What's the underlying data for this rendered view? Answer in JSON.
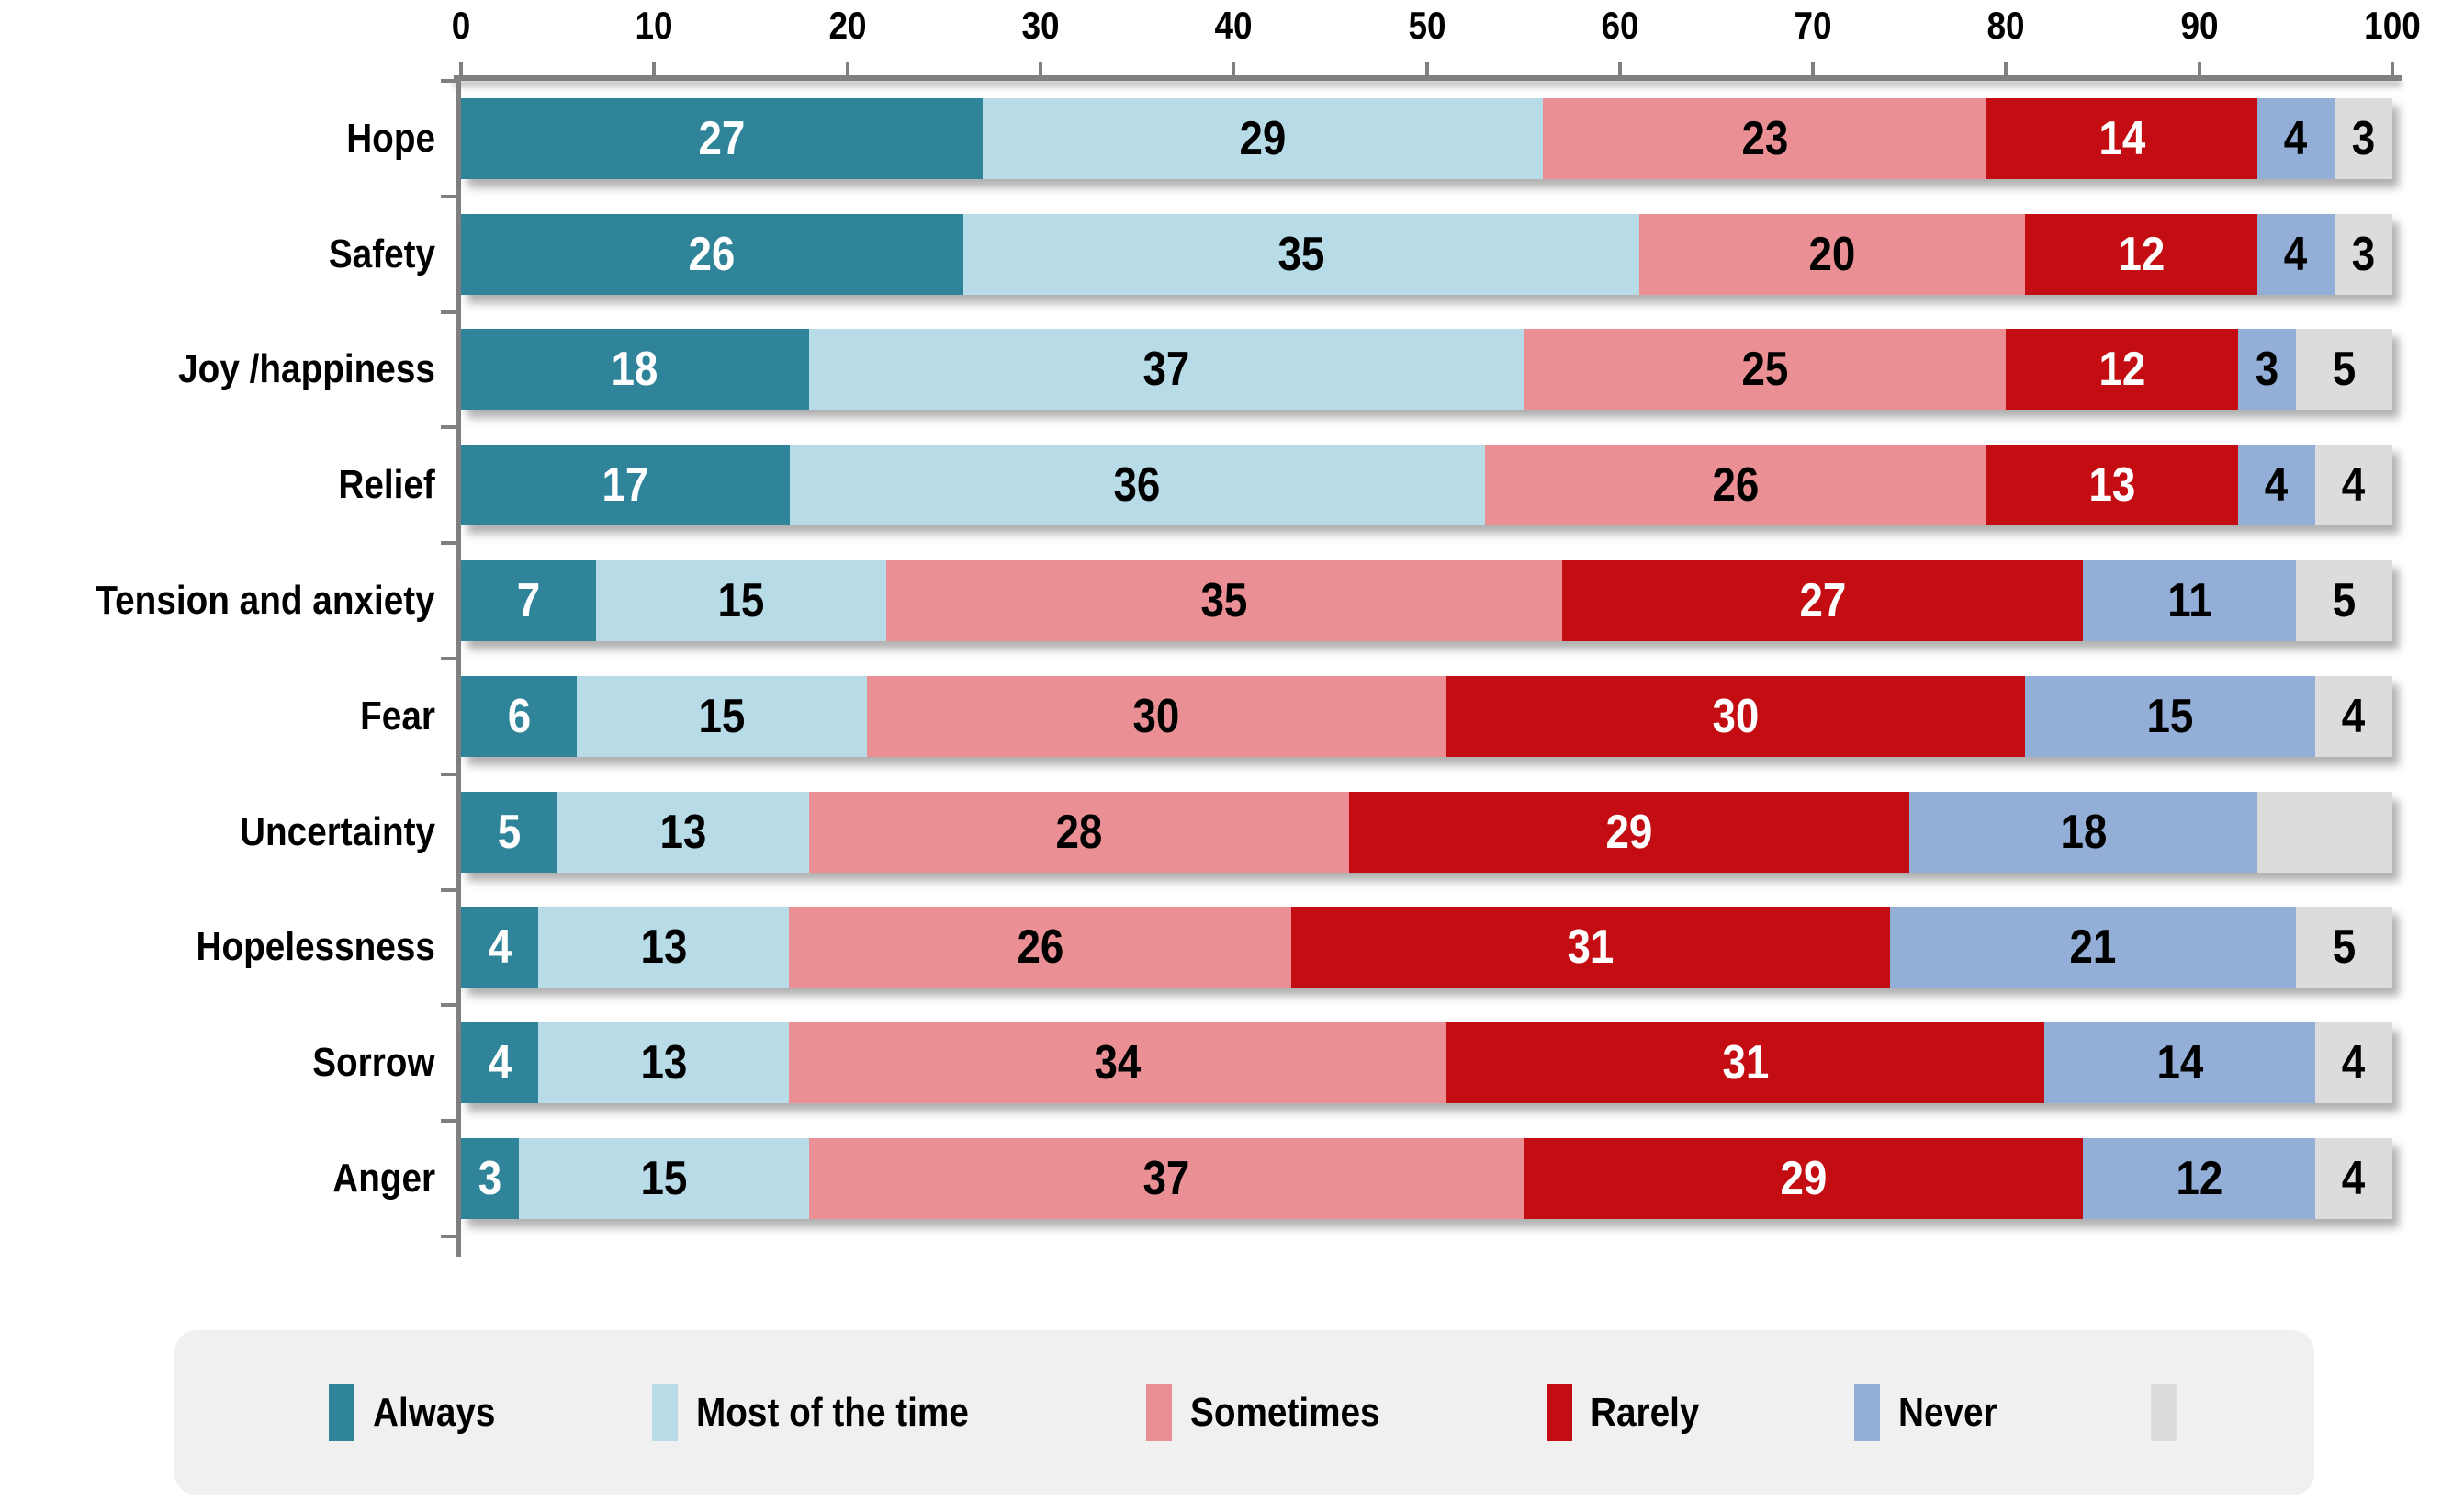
{
  "chart_data": {
    "type": "bar",
    "orientation": "horizontal",
    "stacked": true,
    "title": "",
    "xlabel": "",
    "ylabel": "",
    "x_axis": {
      "min": 0,
      "max": 100,
      "ticks": [
        0,
        10,
        20,
        30,
        40,
        50,
        60,
        70,
        80,
        90,
        100
      ]
    },
    "grid": false,
    "legend_position": "bottom",
    "categories": [
      "Hope",
      "Safety",
      "Joy /happiness",
      "Relief",
      "Tension and anxiety",
      "Fear",
      "Uncertainty",
      "Hopelessness",
      "Sorrow",
      "Anger"
    ],
    "series": [
      {
        "name": "Always",
        "color": "#2F8499",
        "label_color": "#FFFFFF",
        "values": [
          27,
          26,
          18,
          17,
          7,
          6,
          5,
          4,
          4,
          3
        ]
      },
      {
        "name": "Most of the time",
        "color": "#B7DBE7",
        "label_color": "#000000",
        "values": [
          29,
          35,
          37,
          36,
          15,
          15,
          13,
          13,
          13,
          15
        ]
      },
      {
        "name": "Sometimes",
        "color": "#EA9094",
        "label_color": "#000000",
        "values": [
          23,
          20,
          25,
          26,
          35,
          30,
          28,
          26,
          34,
          37
        ]
      },
      {
        "name": "Rarely",
        "color": "#C40D12",
        "label_color": "#FFFFFF",
        "values": [
          14,
          12,
          12,
          13,
          27,
          30,
          29,
          31,
          31,
          29
        ]
      },
      {
        "name": "Never",
        "color": "#93AFD8",
        "label_color": "#000000",
        "values": [
          4,
          4,
          3,
          4,
          11,
          15,
          18,
          21,
          14,
          12
        ]
      },
      {
        "name": "",
        "color": "#DCDCDC",
        "label_color": "#000000",
        "values": [
          3,
          3,
          5,
          4,
          5,
          4,
          7,
          5,
          4,
          4
        ],
        "labels": [
          "3",
          "3",
          "5",
          "4",
          "5",
          "4",
          "",
          "5",
          "4",
          "4"
        ]
      }
    ]
  },
  "style": {
    "axis_color": "#808080",
    "legend_background": "#F0F0F0"
  }
}
